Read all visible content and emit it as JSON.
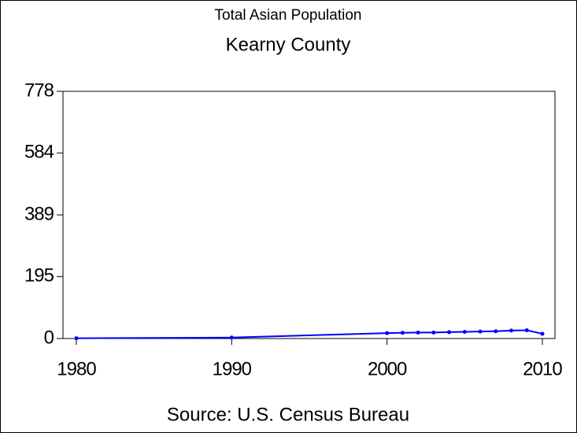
{
  "chart_data": {
    "type": "line",
    "title": "Total Asian Population",
    "subtitle": "Kearny County",
    "source": "Source: U.S. Census Bureau",
    "x": [
      1980,
      1990,
      2000,
      2001,
      2002,
      2003,
      2004,
      2005,
      2006,
      2007,
      2008,
      2009,
      2010
    ],
    "series": [
      {
        "name": "Total Asian Population",
        "color": "#0000ff",
        "values": [
          1,
          3,
          17,
          18,
          19,
          19,
          20,
          21,
          22,
          23,
          25,
          26,
          15
        ]
      }
    ],
    "xlim": [
      1980,
      2010
    ],
    "xticks": [
      1980,
      1990,
      2000,
      2010
    ],
    "ylim": [
      0,
      778
    ],
    "yticks": [
      0,
      195,
      389,
      584,
      778
    ],
    "grid": false
  }
}
